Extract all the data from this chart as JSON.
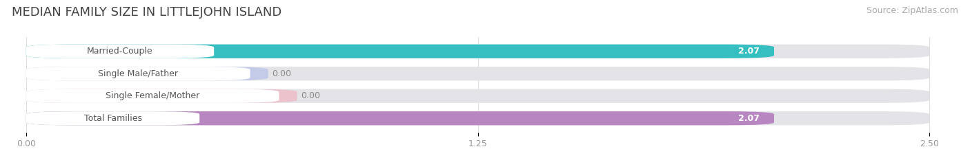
{
  "title": "MEDIAN FAMILY SIZE IN LITTLEJOHN ISLAND",
  "source": "Source: ZipAtlas.com",
  "categories": [
    "Married-Couple",
    "Single Male/Father",
    "Single Female/Mother",
    "Total Families"
  ],
  "values": [
    2.07,
    0.0,
    0.0,
    2.07
  ],
  "bar_colors": [
    "#35bfc0",
    "#aab8e8",
    "#f4a8b8",
    "#b886c0"
  ],
  "track_color": "#e4e4e8",
  "xlim": [
    0,
    2.5
  ],
  "xticks": [
    0.0,
    1.25,
    2.5
  ],
  "xtick_labels": [
    "0.00",
    "1.25",
    "2.50"
  ],
  "bar_height": 0.62,
  "label_color": "#555555",
  "value_color_dark": "#888888",
  "title_fontsize": 13,
  "source_fontsize": 9,
  "label_fontsize": 9,
  "value_fontsize": 9,
  "tick_fontsize": 9,
  "background_color": "#ffffff",
  "grid_color": "#dddddd"
}
